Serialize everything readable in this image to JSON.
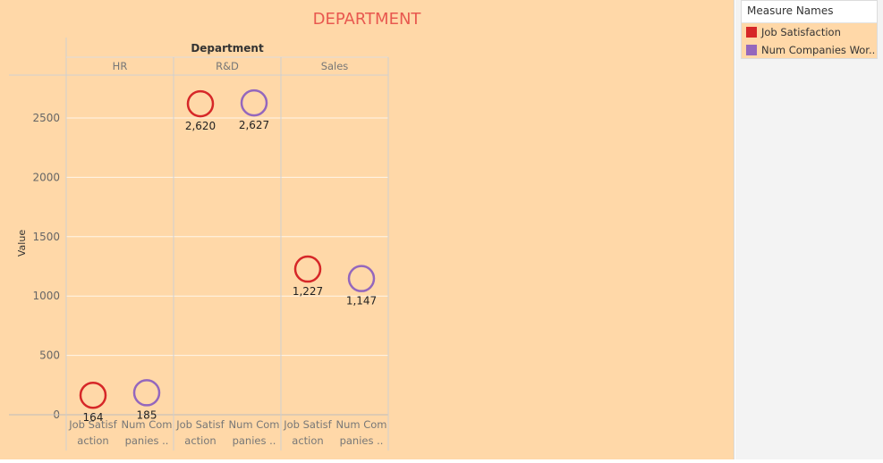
{
  "chart_data": {
    "type": "scatter",
    "title": "DEPARTMENT",
    "column_header": "Department",
    "ylabel": "Value",
    "ylim": [
      0,
      2600
    ],
    "yticks": [
      "0",
      "500",
      "1000",
      "1500",
      "2000",
      "2500"
    ],
    "grid": true,
    "legend_placement": "right",
    "title_color": "#e8584f",
    "groups": [
      {
        "name": "HR",
        "cells": [
          {
            "measure_label": [
              "Job Satisf",
              "action"
            ],
            "series": "Job Satisfaction",
            "value": 164,
            "value_label": "164"
          },
          {
            "measure_label": [
              "Num Com",
              "panies .."
            ],
            "series": "Num Companies Wor..",
            "value": 185,
            "value_label": "185"
          }
        ]
      },
      {
        "name": "R&D",
        "cells": [
          {
            "measure_label": [
              "Job Satisf",
              "action"
            ],
            "series": "Job Satisfaction",
            "value": 2620,
            "value_label": "2,620"
          },
          {
            "measure_label": [
              "Num Com",
              "panies .."
            ],
            "series": "Num Companies Wor..",
            "value": 2627,
            "value_label": "2,627"
          }
        ]
      },
      {
        "name": "Sales",
        "cells": [
          {
            "measure_label": [
              "Job Satisf",
              "action"
            ],
            "series": "Job Satisfaction",
            "value": 1227,
            "value_label": "1,227"
          },
          {
            "measure_label": [
              "Num Com",
              "panies .."
            ],
            "series": "Num Companies Wor..",
            "value": 1147,
            "value_label": "1,147"
          }
        ]
      }
    ],
    "series": [
      {
        "name": "Job Satisfaction",
        "color": "#d62728"
      },
      {
        "name": "Num Companies Wor..",
        "color": "#9467bd"
      }
    ]
  },
  "legend": {
    "title": "Measure Names",
    "items": [
      {
        "label": "Job Satisfaction",
        "color": "#d62728"
      },
      {
        "label": "Num Companies Wor..",
        "color": "#9467bd"
      }
    ]
  }
}
